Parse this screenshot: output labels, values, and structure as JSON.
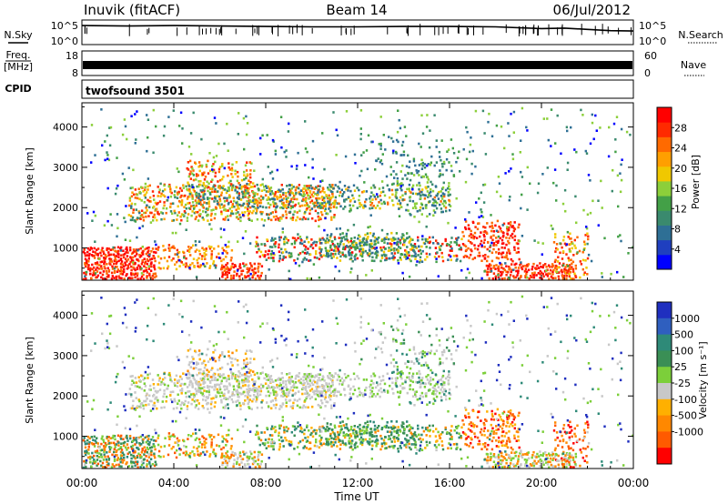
{
  "header": {
    "title": "Inuvik (fitACF)",
    "beam": "Beam 14",
    "date": "06/Jul/2012"
  },
  "colors": {
    "power_scale": [
      "#0000ff",
      "#1f3fbf",
      "#2e6f95",
      "#3a8a6e",
      "#43a047",
      "#8ccf3a",
      "#f0c800",
      "#ff9f00",
      "#ff6a00",
      "#ff2a00",
      "#ff0000"
    ],
    "velocity_scale": [
      "#1f2fbf",
      "#2f5fbf",
      "#2e8a78",
      "#3a8f55",
      "#7ccf3a",
      "#c8c8c8",
      "#ffb000",
      "#ff8800",
      "#ff5a00",
      "#ff0000"
    ]
  },
  "chart_data": [
    {
      "type": "line",
      "name": "noise-panel",
      "left_label_lines": [
        "N.Sky"
      ],
      "right_label_lines": [
        "N.Search"
      ],
      "left_ticks": [
        "10^5",
        "10^0"
      ],
      "right_ticks": [
        "10^5",
        "10^0"
      ],
      "series": [
        {
          "name": "N.Sky",
          "x_hours": [
            0,
            2,
            4,
            6,
            8,
            10,
            12,
            14,
            16,
            18,
            20,
            21,
            22,
            23,
            24
          ],
          "log10_values": [
            4.1,
            4.0,
            4.1,
            4.0,
            3.9,
            3.8,
            3.8,
            3.9,
            3.9,
            3.8,
            3.4,
            3.5,
            3.2,
            2.9,
            2.8
          ]
        }
      ]
    },
    {
      "type": "line",
      "name": "frequency-panel",
      "left_label_lines": [
        "Freq.",
        "[MHz]"
      ],
      "right_label_lines": [
        "Nave"
      ],
      "left_ticks": [
        "18",
        "8"
      ],
      "right_ticks": [
        "60",
        "0"
      ],
      "series": [
        {
          "name": "Freq.",
          "x_hours": [
            0,
            24
          ],
          "values": [
            10.5,
            10.5
          ]
        }
      ]
    },
    {
      "type": "table",
      "name": "cpid-panel",
      "label": "CPID",
      "program": "twofsound 3501"
    },
    {
      "type": "heatmap",
      "name": "power-panel",
      "ylabel": "Slant Range [km]",
      "y_ticks": [
        1000,
        2000,
        3000,
        4000
      ],
      "ylim": [
        200,
        4600
      ],
      "colorbar_label": "Power [dB]",
      "colorbar_ticks": [
        4,
        8,
        12,
        16,
        20,
        24,
        28
      ],
      "clim": [
        0,
        32
      ]
    },
    {
      "type": "heatmap",
      "name": "velocity-panel",
      "ylabel": "Slant Range [km]",
      "y_ticks": [
        1000,
        2000,
        3000,
        4000
      ],
      "ylim": [
        200,
        4600
      ],
      "colorbar_label": "Velocity [m s⁻¹]",
      "colorbar_ticks": [
        1000,
        500,
        100,
        25,
        -25,
        -100,
        -500,
        -1000
      ],
      "xlabel": "Time UT",
      "x_ticks": [
        "00:00",
        "04:00",
        "08:00",
        "12:00",
        "16:00",
        "20:00",
        "00:00"
      ],
      "xlim_hours": [
        0,
        24
      ]
    }
  ]
}
